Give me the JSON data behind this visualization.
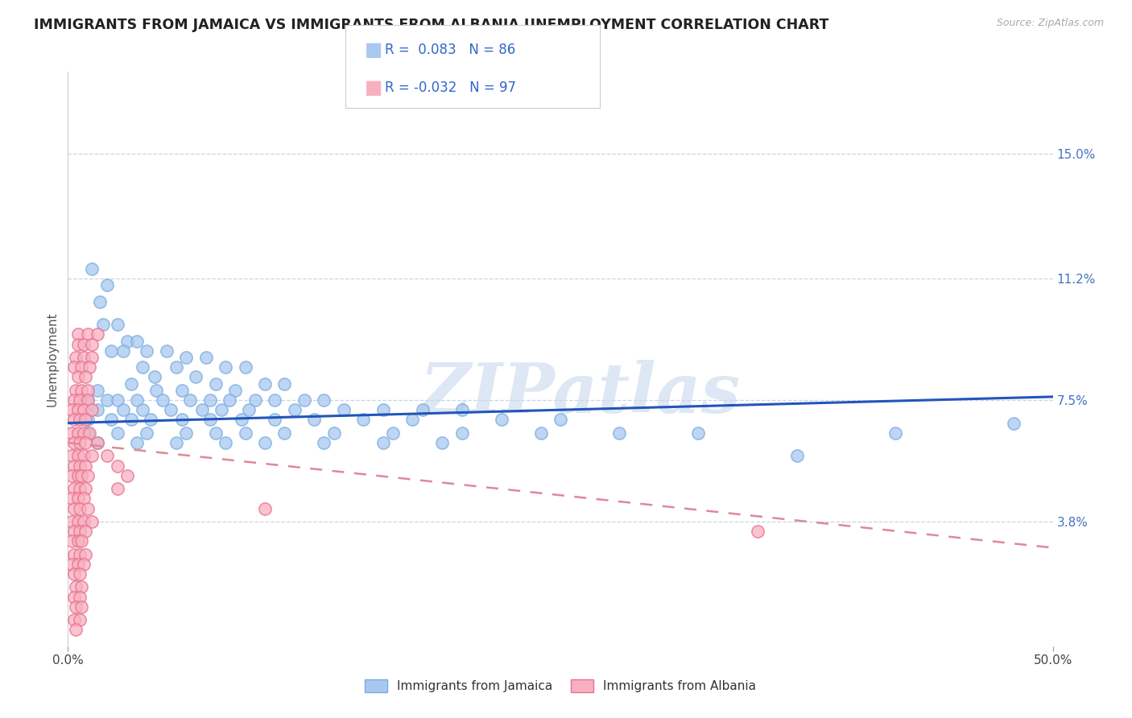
{
  "title": "IMMIGRANTS FROM JAMAICA VS IMMIGRANTS FROM ALBANIA UNEMPLOYMENT CORRELATION CHART",
  "source": "Source: ZipAtlas.com",
  "ylabel": "Unemployment",
  "xlim": [
    0.0,
    0.5
  ],
  "ylim": [
    0.0,
    0.175
  ],
  "yticks": [
    0.038,
    0.075,
    0.112,
    0.15
  ],
  "ytick_labels": [
    "3.8%",
    "7.5%",
    "11.2%",
    "15.0%"
  ],
  "xticks": [
    0.0,
    0.5
  ],
  "xtick_labels": [
    "0.0%",
    "50.0%"
  ],
  "jamaica_color": "#a8c8f0",
  "jamaica_edge_color": "#7aaee0",
  "albania_color": "#f8b0c0",
  "albania_edge_color": "#e87090",
  "jamaica_R": 0.083,
  "jamaica_N": 86,
  "albania_R": -0.032,
  "albania_N": 97,
  "trend_jamaica_color": "#2255bb",
  "trend_albania_color": "#e08898",
  "background_color": "#ffffff",
  "grid_color": "#c8d4e8",
  "watermark": "ZIPatlas",
  "title_fontsize": 12.5,
  "label_fontsize": 11,
  "tick_fontsize": 11,
  "legend_fontsize": 12,
  "jamaica_trend_y0": 0.068,
  "jamaica_trend_y1": 0.076,
  "albania_trend_y0": 0.062,
  "albania_trend_y1": 0.03,
  "jamaica_points": [
    [
      0.012,
      0.115
    ],
    [
      0.02,
      0.11
    ],
    [
      0.016,
      0.105
    ],
    [
      0.025,
      0.098
    ],
    [
      0.018,
      0.098
    ],
    [
      0.03,
      0.093
    ],
    [
      0.035,
      0.093
    ],
    [
      0.022,
      0.09
    ],
    [
      0.028,
      0.09
    ],
    [
      0.04,
      0.09
    ],
    [
      0.05,
      0.09
    ],
    [
      0.06,
      0.088
    ],
    [
      0.07,
      0.088
    ],
    [
      0.038,
      0.085
    ],
    [
      0.055,
      0.085
    ],
    [
      0.08,
      0.085
    ],
    [
      0.09,
      0.085
    ],
    [
      0.044,
      0.082
    ],
    [
      0.065,
      0.082
    ],
    [
      0.032,
      0.08
    ],
    [
      0.075,
      0.08
    ],
    [
      0.1,
      0.08
    ],
    [
      0.11,
      0.08
    ],
    [
      0.015,
      0.078
    ],
    [
      0.045,
      0.078
    ],
    [
      0.058,
      0.078
    ],
    [
      0.085,
      0.078
    ],
    [
      0.01,
      0.075
    ],
    [
      0.02,
      0.075
    ],
    [
      0.025,
      0.075
    ],
    [
      0.035,
      0.075
    ],
    [
      0.048,
      0.075
    ],
    [
      0.062,
      0.075
    ],
    [
      0.072,
      0.075
    ],
    [
      0.082,
      0.075
    ],
    [
      0.095,
      0.075
    ],
    [
      0.105,
      0.075
    ],
    [
      0.12,
      0.075
    ],
    [
      0.13,
      0.075
    ],
    [
      0.015,
      0.072
    ],
    [
      0.028,
      0.072
    ],
    [
      0.038,
      0.072
    ],
    [
      0.052,
      0.072
    ],
    [
      0.068,
      0.072
    ],
    [
      0.078,
      0.072
    ],
    [
      0.092,
      0.072
    ],
    [
      0.115,
      0.072
    ],
    [
      0.14,
      0.072
    ],
    [
      0.16,
      0.072
    ],
    [
      0.18,
      0.072
    ],
    [
      0.2,
      0.072
    ],
    [
      0.01,
      0.069
    ],
    [
      0.022,
      0.069
    ],
    [
      0.032,
      0.069
    ],
    [
      0.042,
      0.069
    ],
    [
      0.058,
      0.069
    ],
    [
      0.072,
      0.069
    ],
    [
      0.088,
      0.069
    ],
    [
      0.105,
      0.069
    ],
    [
      0.125,
      0.069
    ],
    [
      0.15,
      0.069
    ],
    [
      0.175,
      0.069
    ],
    [
      0.22,
      0.069
    ],
    [
      0.25,
      0.069
    ],
    [
      0.01,
      0.065
    ],
    [
      0.025,
      0.065
    ],
    [
      0.04,
      0.065
    ],
    [
      0.06,
      0.065
    ],
    [
      0.075,
      0.065
    ],
    [
      0.09,
      0.065
    ],
    [
      0.11,
      0.065
    ],
    [
      0.135,
      0.065
    ],
    [
      0.165,
      0.065
    ],
    [
      0.2,
      0.065
    ],
    [
      0.24,
      0.065
    ],
    [
      0.28,
      0.065
    ],
    [
      0.32,
      0.065
    ],
    [
      0.015,
      0.062
    ],
    [
      0.035,
      0.062
    ],
    [
      0.055,
      0.062
    ],
    [
      0.08,
      0.062
    ],
    [
      0.1,
      0.062
    ],
    [
      0.13,
      0.062
    ],
    [
      0.16,
      0.062
    ],
    [
      0.19,
      0.062
    ],
    [
      0.37,
      0.058
    ],
    [
      0.42,
      0.065
    ],
    [
      0.48,
      0.068
    ]
  ],
  "albania_points": [
    [
      0.005,
      0.095
    ],
    [
      0.01,
      0.095
    ],
    [
      0.015,
      0.095
    ],
    [
      0.005,
      0.092
    ],
    [
      0.008,
      0.092
    ],
    [
      0.012,
      0.092
    ],
    [
      0.004,
      0.088
    ],
    [
      0.008,
      0.088
    ],
    [
      0.012,
      0.088
    ],
    [
      0.003,
      0.085
    ],
    [
      0.007,
      0.085
    ],
    [
      0.011,
      0.085
    ],
    [
      0.005,
      0.082
    ],
    [
      0.009,
      0.082
    ],
    [
      0.004,
      0.078
    ],
    [
      0.007,
      0.078
    ],
    [
      0.01,
      0.078
    ],
    [
      0.003,
      0.075
    ],
    [
      0.006,
      0.075
    ],
    [
      0.01,
      0.075
    ],
    [
      0.002,
      0.072
    ],
    [
      0.005,
      0.072
    ],
    [
      0.008,
      0.072
    ],
    [
      0.012,
      0.072
    ],
    [
      0.003,
      0.069
    ],
    [
      0.006,
      0.069
    ],
    [
      0.009,
      0.069
    ],
    [
      0.002,
      0.065
    ],
    [
      0.005,
      0.065
    ],
    [
      0.008,
      0.065
    ],
    [
      0.011,
      0.065
    ],
    [
      0.003,
      0.062
    ],
    [
      0.006,
      0.062
    ],
    [
      0.009,
      0.062
    ],
    [
      0.002,
      0.058
    ],
    [
      0.005,
      0.058
    ],
    [
      0.008,
      0.058
    ],
    [
      0.012,
      0.058
    ],
    [
      0.003,
      0.055
    ],
    [
      0.006,
      0.055
    ],
    [
      0.009,
      0.055
    ],
    [
      0.002,
      0.052
    ],
    [
      0.005,
      0.052
    ],
    [
      0.007,
      0.052
    ],
    [
      0.01,
      0.052
    ],
    [
      0.003,
      0.048
    ],
    [
      0.006,
      0.048
    ],
    [
      0.009,
      0.048
    ],
    [
      0.002,
      0.045
    ],
    [
      0.005,
      0.045
    ],
    [
      0.008,
      0.045
    ],
    [
      0.003,
      0.042
    ],
    [
      0.006,
      0.042
    ],
    [
      0.01,
      0.042
    ],
    [
      0.002,
      0.038
    ],
    [
      0.005,
      0.038
    ],
    [
      0.008,
      0.038
    ],
    [
      0.012,
      0.038
    ],
    [
      0.003,
      0.035
    ],
    [
      0.006,
      0.035
    ],
    [
      0.009,
      0.035
    ],
    [
      0.002,
      0.032
    ],
    [
      0.005,
      0.032
    ],
    [
      0.007,
      0.032
    ],
    [
      0.003,
      0.028
    ],
    [
      0.006,
      0.028
    ],
    [
      0.009,
      0.028
    ],
    [
      0.002,
      0.025
    ],
    [
      0.005,
      0.025
    ],
    [
      0.008,
      0.025
    ],
    [
      0.003,
      0.022
    ],
    [
      0.006,
      0.022
    ],
    [
      0.004,
      0.018
    ],
    [
      0.007,
      0.018
    ],
    [
      0.003,
      0.015
    ],
    [
      0.006,
      0.015
    ],
    [
      0.004,
      0.012
    ],
    [
      0.007,
      0.012
    ],
    [
      0.003,
      0.008
    ],
    [
      0.006,
      0.008
    ],
    [
      0.004,
      0.005
    ],
    [
      0.015,
      0.062
    ],
    [
      0.02,
      0.058
    ],
    [
      0.025,
      0.055
    ],
    [
      0.03,
      0.052
    ],
    [
      0.025,
      0.048
    ],
    [
      0.1,
      0.042
    ],
    [
      0.35,
      0.035
    ]
  ]
}
